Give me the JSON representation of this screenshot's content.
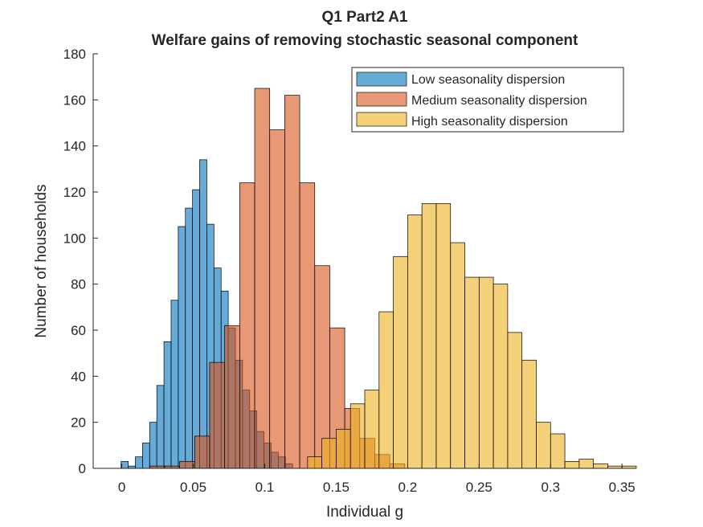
{
  "chart_data": {
    "type": "histogram",
    "title": "Q1 Part2 A1",
    "subtitle": "Welfare gains of removing stochastic seasonal component",
    "xlabel": "Individual g",
    "ylabel": "Number of households",
    "xlim": [
      -0.02,
      0.36
    ],
    "ylim": [
      0,
      180
    ],
    "xticks": [
      0,
      0.05,
      0.1,
      0.15,
      0.2,
      0.25,
      0.3,
      0.35
    ],
    "xtick_labels": [
      "0",
      "0.05",
      "0.1",
      "0.15",
      "0.2",
      "0.25",
      "0.3",
      "0.35"
    ],
    "yticks": [
      0,
      20,
      40,
      60,
      80,
      100,
      120,
      140,
      160,
      180
    ],
    "ytick_labels": [
      "0",
      "20",
      "40",
      "60",
      "80",
      "100",
      "120",
      "140",
      "160",
      "180"
    ],
    "grid": false,
    "legend_position": "top-right",
    "series": [
      {
        "name": "Low seasonality dispersion",
        "color": "#0072BD",
        "bin_start": -0.0005,
        "bin_width": 0.005,
        "counts": [
          3,
          1,
          5,
          11,
          20,
          36,
          55,
          73,
          105,
          113,
          121,
          134,
          106,
          87,
          77,
          61,
          47,
          34,
          25,
          16,
          11,
          7,
          5,
          2
        ]
      },
      {
        "name": "Medium seasonality dispersion",
        "color": "#D95319",
        "bin_start": 0.0195,
        "bin_width": 0.0105,
        "counts": [
          1,
          1,
          3,
          14,
          46,
          62,
          124,
          165,
          147,
          162,
          124,
          88,
          61,
          26,
          13,
          6,
          2
        ]
      },
      {
        "name": "High seasonality dispersion",
        "color": "#EDB120",
        "bin_start": 0.13,
        "bin_width": 0.01,
        "counts": [
          5,
          13,
          17,
          28,
          34,
          68,
          92,
          110,
          115,
          115,
          98,
          83,
          83,
          80,
          59,
          47,
          20,
          15,
          3,
          4,
          2,
          1,
          1
        ]
      }
    ]
  }
}
